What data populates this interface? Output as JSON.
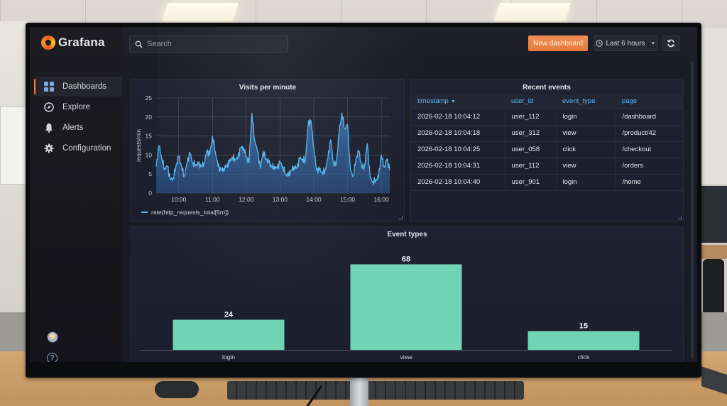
{
  "app": {
    "name": "Grafana",
    "accent_color": "#f47e3c"
  },
  "sidebar": {
    "items": [
      {
        "label": "Dashboards",
        "icon": "grid-icon",
        "active": true
      },
      {
        "label": "Explore",
        "icon": "compass-icon",
        "active": false
      },
      {
        "label": "Alerts",
        "icon": "bell-icon",
        "active": false
      },
      {
        "label": "Configuration",
        "icon": "gear-icon",
        "active": false
      }
    ],
    "help_label": "?"
  },
  "topbar": {
    "search_placeholder": "Search",
    "new_dashboard_label": "New dashboard",
    "time_range_label": "Last 6 hours",
    "refresh_icon": "refresh-icon"
  },
  "panels": {
    "timeseries": {
      "title": "Visits per minute",
      "ylabel": "requests/min",
      "legend": "rate(http_requests_total[5m])",
      "line_color": "#56b6ec"
    },
    "table": {
      "title": "Recent events",
      "columns": [
        "timestamp",
        "user_id",
        "event_type",
        "page"
      ],
      "sort_indicator": "▼",
      "rows": [
        [
          "2026-02-18 10:04:12",
          "user_112",
          "login",
          "/dashboard"
        ],
        [
          "2026-02-18 10:04:18",
          "user_312",
          "view",
          "/product/42"
        ],
        [
          "2026-02-18 10:04:25",
          "user_058",
          "click",
          "/checkout"
        ],
        [
          "2026-02-18 10:04:31",
          "user_112",
          "view",
          "/orders"
        ],
        [
          "2026-02-18 10:04:40",
          "user_901",
          "login",
          "/home"
        ]
      ]
    },
    "barchart": {
      "title": "Event types",
      "bar_color": "#6fd3b4"
    }
  },
  "chart_data": [
    {
      "type": "line",
      "title": "Visits per minute",
      "xlabel": "",
      "ylabel": "requests/min",
      "x_ticks": [
        "10:00",
        "11:00",
        "12:00",
        "13:00",
        "14:00",
        "15:00",
        "16:00"
      ],
      "y_ticks": [
        0,
        5,
        10,
        15,
        20,
        25
      ],
      "ylim": [
        0,
        25
      ],
      "x_range": [
        "09:20",
        "16:15"
      ],
      "grid": true,
      "legend": {
        "position": "bottom-left",
        "entries": [
          "rate(http_requests_total[5m])"
        ]
      },
      "series": [
        {
          "name": "rate(http_requests_total[5m])",
          "x": [
            "09:20",
            "09:25",
            "09:30",
            "09:35",
            "09:40",
            "09:45",
            "09:50",
            "09:55",
            "10:00",
            "10:05",
            "10:10",
            "10:15",
            "10:20",
            "10:25",
            "10:30",
            "10:35",
            "10:40",
            "10:45",
            "10:50",
            "10:55",
            "11:00",
            "11:05",
            "11:10",
            "11:15",
            "11:20",
            "11:25",
            "11:30",
            "11:35",
            "11:40",
            "11:45",
            "11:50",
            "11:55",
            "12:00",
            "12:05",
            "12:10",
            "12:15",
            "12:20",
            "12:25",
            "12:30",
            "12:35",
            "12:40",
            "12:45",
            "12:50",
            "12:55",
            "13:00",
            "13:05",
            "13:10",
            "13:15",
            "13:20",
            "13:25",
            "13:30",
            "13:35",
            "13:40",
            "13:45",
            "13:50",
            "13:55",
            "14:00",
            "14:05",
            "14:10",
            "14:15",
            "14:20",
            "14:25",
            "14:30",
            "14:35",
            "14:40",
            "14:45",
            "14:50",
            "14:55",
            "15:00",
            "15:05",
            "15:10",
            "15:15",
            "15:20",
            "15:25",
            "15:30",
            "15:35",
            "15:40",
            "15:45",
            "15:50",
            "15:55",
            "16:00",
            "16:05",
            "16:10",
            "16:15"
          ],
          "values": [
            7,
            12.5,
            9,
            6.5,
            7,
            3.5,
            4,
            7,
            9.5,
            7,
            4.5,
            8,
            10.5,
            8,
            7.5,
            7.5,
            7,
            8,
            11,
            10,
            15,
            11,
            7,
            6,
            6.5,
            7,
            8,
            9.5,
            9,
            9,
            12,
            12,
            9.5,
            8,
            21,
            14,
            11,
            6.5,
            11,
            9,
            8,
            7,
            7,
            6.5,
            8,
            7,
            5,
            4.5,
            6,
            7,
            6.5,
            9,
            9,
            8.5,
            18,
            19,
            12,
            6,
            6,
            5.5,
            6,
            9,
            14,
            8,
            7.5,
            16,
            21,
            17,
            18,
            6,
            4.5,
            9,
            11,
            7,
            7,
            13,
            4,
            3,
            3.5,
            4,
            10,
            7,
            9,
            6
          ]
        }
      ]
    },
    {
      "type": "bar",
      "title": "Event types",
      "categories": [
        "login",
        "view",
        "click"
      ],
      "values": [
        24,
        68,
        15
      ],
      "xlabel": "",
      "ylabel": "",
      "ylim": [
        0,
        75
      ],
      "grid": false,
      "value_labels": true
    }
  ]
}
